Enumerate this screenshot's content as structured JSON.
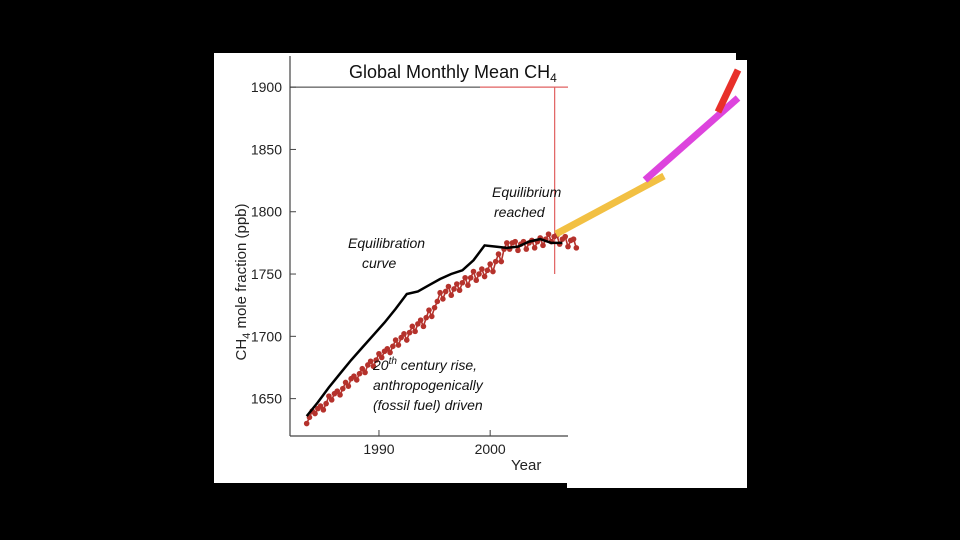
{
  "chart_data": {
    "type": "line",
    "title": "Global Monthly Mean CH",
    "title_subscript": "4",
    "ylabel_main": "CH",
    "ylabel_subscript": "4",
    "ylabel_rest": " mole fraction (ppb)",
    "xlabel": "Year",
    "xlim": [
      1982,
      2007
    ],
    "ylim": [
      1620,
      1925
    ],
    "x_ticks": [
      1990,
      2000
    ],
    "y_ticks": [
      1650,
      1700,
      1750,
      1800,
      1850,
      1900
    ],
    "grid": false,
    "series": [
      {
        "kind": "trend",
        "color": "#000000",
        "x": [
          1983.5,
          1984.5,
          1985.5,
          1986.5,
          1987.5,
          1988.5,
          1989.5,
          1990.5,
          1991.5,
          1992.5,
          1993.5,
          1994.5,
          1995.5,
          1996.5,
          1997.5,
          1998.5,
          1999.5,
          2000.5,
          2001.5,
          2002.5,
          2003.5,
          2004.5,
          2005.5,
          2006.5
        ],
        "y": [
          1636,
          1647,
          1659,
          1670,
          1681,
          1691,
          1701,
          1711,
          1722,
          1734,
          1736,
          1741,
          1746,
          1750,
          1753,
          1761,
          1773,
          1772,
          1771,
          1772,
          1776,
          1778,
          1775,
          1775
        ]
      },
      {
        "kind": "monthly",
        "color": "#b5322c",
        "x_start": 1983.5,
        "y": [
          1630,
          1635,
          1640,
          1638,
          1642,
          1644,
          1641,
          1646,
          1652,
          1649,
          1654,
          1656,
          1653,
          1658,
          1663,
          1660,
          1666,
          1668,
          1665,
          1670,
          1674,
          1671,
          1677,
          1680,
          1676,
          1681,
          1686,
          1683,
          1688,
          1690,
          1687,
          1692,
          1697,
          1693,
          1699,
          1702,
          1697,
          1703,
          1708,
          1704,
          1710,
          1713,
          1708,
          1715,
          1721,
          1716,
          1723,
          1728,
          1735,
          1730,
          1736,
          1740,
          1733,
          1738,
          1742,
          1737,
          1743,
          1747,
          1741,
          1747,
          1752,
          1745,
          1750,
          1754,
          1748,
          1753,
          1758,
          1752,
          1760,
          1766,
          1760,
          1770,
          1775,
          1770,
          1775,
          1776,
          1769,
          1774,
          1776,
          1770,
          1775,
          1777,
          1771,
          1776,
          1779,
          1773,
          1778,
          1782,
          1776,
          1780,
          1781,
          1774,
          1778,
          1780,
          1772,
          1777,
          1778,
          1771
        ],
        "step": 0.25
      }
    ],
    "annotations": {
      "equilibration": [
        "Equilibration",
        "curve"
      ],
      "equilibrium": [
        "Equilibrium",
        "reached"
      ],
      "rise_line1_sup": "th",
      "rise_line1_num": "20",
      "rise_line1_rest": " century rise,",
      "rise_line2": "anthropogenically",
      "rise_line3": "(fossil fuel) driven"
    },
    "projection_segments": [
      {
        "color": "#f2c043"
      },
      {
        "color": "#dd44dd"
      },
      {
        "color": "#e8302a"
      }
    ],
    "reference_lines": {
      "color": "#e06060",
      "h_y": 1900,
      "v_x": 2005.8
    }
  }
}
